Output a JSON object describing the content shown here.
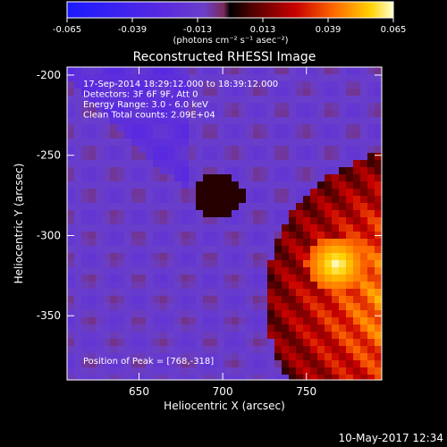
{
  "colorbar": {
    "min_label": "-0.065",
    "ticks": [
      "-0.065",
      "-0.039",
      "-0.013",
      "0.013",
      "0.039",
      "0.065"
    ],
    "units_label": "(photons cm⁻² s⁻¹ asec⁻²)",
    "colors": [
      "#1a1aff",
      "#5a2adf",
      "#6a3fc9",
      "#7a2a5a",
      "#000000",
      "#4a0000",
      "#c80000",
      "#ff6a00",
      "#ffd200",
      "#ffffd0"
    ]
  },
  "chart_data": {
    "type": "heatmap",
    "title": "Reconstructed RHESSI Image",
    "xlabel": "Heliocentric X (arcsec)",
    "ylabel": "Heliocentric Y (arcsec)",
    "xlim": [
      607,
      795
    ],
    "ylim": [
      -390,
      -195
    ],
    "x_ticks": [
      650,
      700,
      750
    ],
    "y_ticks": [
      -200,
      -250,
      -300,
      -350
    ],
    "grid": false,
    "annotations": [
      "17-Sep-2014 18:29:12.000 to 18:39:12.000",
      "Detectors: 3F 6F 9F, Att 0",
      "Energy Range: 3.0 - 6.0 keV",
      "Clean    Total counts: 2.09E+04"
    ],
    "peak_label": "Position of Peak = [768,-318]",
    "peak": [
      768,
      -318
    ],
    "value_range": [
      -0.065,
      0.065
    ]
  },
  "footer": {
    "timestamp": "10-May-2017 12:34"
  }
}
